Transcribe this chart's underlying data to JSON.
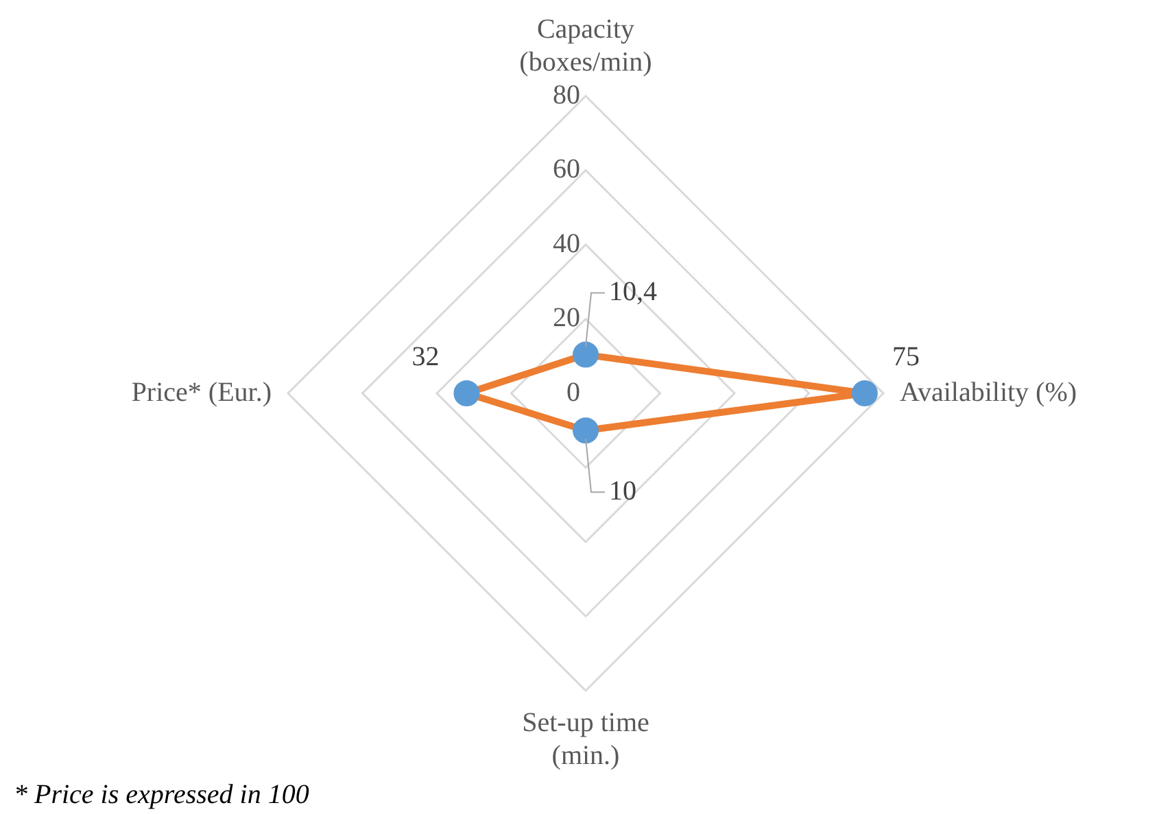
{
  "chart_data": {
    "type": "radar",
    "categories": [
      "Capacity\n(boxes/min)",
      "Availability (%)",
      "Set-up time\n(min.)",
      "Price* (Eur.)"
    ],
    "series": [
      {
        "color": "#ed7d31",
        "values": [
          10.4,
          75,
          10,
          32
        ],
        "value_labels": [
          "10,4",
          "75",
          "10",
          "32"
        ]
      }
    ],
    "ylim": [
      0,
      80
    ],
    "yticks": [
      0,
      20,
      40,
      60,
      80
    ],
    "grid": true,
    "marker": "circle",
    "legend": false,
    "annotations": [
      "* Price is expressed in 100"
    ]
  }
}
